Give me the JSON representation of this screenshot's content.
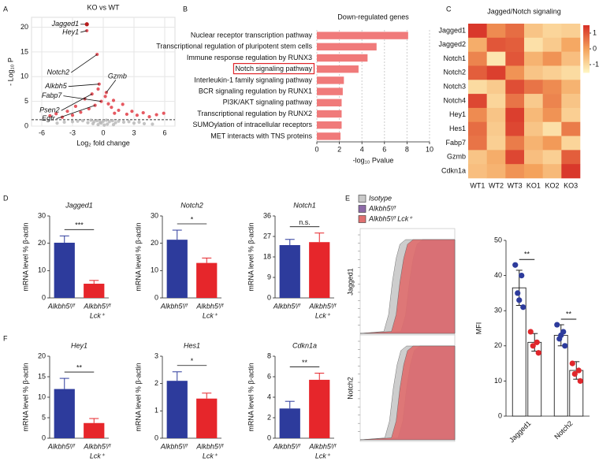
{
  "chart_data": [
    {
      "panel": "A",
      "type": "volcano",
      "title": "KO vs WT",
      "xlabel": "Log₂ fold change",
      "ylabel": "- Log₁₀ P",
      "xlim": [
        -7,
        7
      ],
      "xticks": [
        -6,
        -3,
        0,
        3,
        6
      ],
      "ylim": [
        0,
        22
      ],
      "yticks": [
        0,
        5,
        10,
        15,
        20
      ],
      "grid": true,
      "threshold": 1.3,
      "series": [
        {
          "color": "#b5b5b5",
          "x": [
            -4.5,
            -3.8,
            -3,
            -2.5,
            -2,
            -1.5,
            -1.2,
            -0.9,
            -0.6,
            -0.3,
            0,
            0.3,
            0.6,
            0.9,
            1.2,
            1.5,
            2,
            2.5,
            3,
            3.5,
            4,
            4.8,
            -0.5,
            0.4,
            -1,
            1,
            0.1,
            -0.2
          ],
          "values": [
            0.6,
            0.8,
            0.9,
            1.0,
            1.1,
            0.7,
            1.2,
            0.9,
            1.1,
            0.8,
            1.0,
            1.2,
            0.9,
            1.1,
            0.7,
            1.0,
            0.8,
            0.9,
            0.6,
            0.8,
            0.5,
            0.4,
            0.3,
            0.4,
            0.5,
            0.3,
            0.2,
            0.6
          ]
        },
        {
          "color": "#e0303a",
          "x": [
            -5.2,
            -4.6,
            -4,
            -3.5,
            -3,
            -2.7,
            -2.2,
            -1.8,
            -1.4,
            -1.1,
            -0.8,
            -0.5,
            -0.2,
            0.2,
            0.5,
            0.8,
            1.1,
            1.5,
            1.9,
            2.3,
            2.8,
            3.3,
            3.9,
            4.5,
            5.2,
            5.9,
            -0.4,
            0.3,
            1.0,
            -1.6,
            -1.6,
            -0.6
          ],
          "values": [
            2.1,
            2.5,
            1.8,
            3.0,
            2.2,
            4.0,
            2.8,
            5.5,
            3.5,
            6.5,
            4.2,
            7.5,
            5.0,
            6.0,
            4.5,
            3.8,
            2.6,
            3.2,
            4.4,
            2.4,
            3.0,
            2.2,
            2.7,
            1.9,
            2.3,
            2.6,
            8.5,
            6.8,
            5.2,
            20.6,
            19.3,
            14.5
          ]
        }
      ],
      "labels": [
        {
          "text": "Jagged1",
          "x": -1.6,
          "y": 20.6
        },
        {
          "text": "Hey1",
          "x": -1.6,
          "y": 19.3
        },
        {
          "text": "Notch2",
          "x": -0.6,
          "y": 14.5
        },
        {
          "text": "Alkbh5",
          "x": -0.4,
          "y": 8.5
        },
        {
          "text": "Fabp7",
          "x": -0.2,
          "y": 5.0
        },
        {
          "text": "Psen2",
          "x": -1.1,
          "y": 6.5
        },
        {
          "text": "Egfr",
          "x": -0.8,
          "y": 4.2
        },
        {
          "text": "Gzmb",
          "x": 0.3,
          "y": 6.8
        }
      ]
    },
    {
      "panel": "B",
      "type": "hbar",
      "title": "Down-regulated genes",
      "xlabel": "-log₁₀ Pvalue",
      "categories": [
        "Nuclear receptor transcription pathway",
        "Transcriptional regulation of pluripotent stem cells",
        "Immune response regulation by RUNX3",
        "Notch signaling pathway",
        "Interleukin-1 family signaling pathway",
        "BCR signaling regulation by RUNX1",
        "PI3K/AKT signaling pathway",
        "Transcriptional regulation by RUNX2",
        "SUMOylation of intracellular receptors",
        "MET interacts with TNS proteins"
      ],
      "values": [
        8.1,
        5.3,
        4.5,
        3.7,
        2.4,
        2.3,
        2.2,
        2.2,
        2.2,
        2.1
      ],
      "color": "#f07a7a",
      "highlight_index": 3,
      "xlim": [
        0,
        10
      ],
      "xticks": [
        0,
        2,
        4,
        6,
        8,
        10
      ],
      "grid": true
    },
    {
      "panel": "C",
      "type": "heatmap",
      "title": "Jagged/Notch signaling",
      "rows": [
        "Jagged1",
        "Jagged2",
        "Notch1",
        "Notch2",
        "Notch3",
        "Notch4",
        "Hey1",
        "Hes1",
        "Fabp7",
        "Gzmb",
        "Cdkn1a"
      ],
      "columns": [
        "WT1",
        "WT2",
        "WT3",
        "KO1",
        "KO2",
        "KO3"
      ],
      "highlight_rows": [
        0,
        3
      ],
      "highlight_color": "#e0303a",
      "values": [
        [
          1.4,
          0.3,
          0.7,
          -0.6,
          -0.9,
          -0.8
        ],
        [
          -0.2,
          1.0,
          0.9,
          -1.1,
          -0.7,
          -0.1
        ],
        [
          0.4,
          -1.2,
          1.0,
          -0.3,
          0.2,
          -0.5
        ],
        [
          0.9,
          1.3,
          0.2,
          -0.6,
          -0.8,
          -1.0
        ],
        [
          -1.0,
          -0.7,
          1.1,
          0.6,
          0.3,
          -0.3
        ],
        [
          1.2,
          -0.9,
          0.6,
          -0.7,
          0.4,
          -0.6
        ],
        [
          0.3,
          -0.6,
          1.3,
          -0.4,
          0.2,
          -0.8
        ],
        [
          0.7,
          -0.7,
          1.2,
          -0.6,
          -1.1,
          0.5
        ],
        [
          0.6,
          -0.8,
          0.5,
          -0.3,
          0.1,
          -0.9
        ],
        [
          -0.6,
          -0.2,
          1.2,
          -0.5,
          -0.8,
          0.9
        ],
        [
          -0.5,
          -0.3,
          0.2,
          0.0,
          -0.4,
          1.4
        ]
      ],
      "color_range": [
        -1.5,
        1.5
      ],
      "colors": [
        "#fff7c4",
        "#f4a25c",
        "#d73027"
      ],
      "colorbar_ticks": [
        1,
        0,
        -1
      ]
    },
    {
      "panel": "D",
      "type": "bar",
      "title": "Jagged1",
      "ylabel": "mRNA level % β-actin",
      "categories": [
        [
          "Alkbh5ᶠ/ᶠ"
        ],
        [
          "Alkbh5ᶠ/ᶠ",
          "Lck⁺"
        ]
      ],
      "values": [
        20.2,
        5.2
      ],
      "errors": [
        2.5,
        1.2
      ],
      "colors": [
        "#2d3b9c",
        "#e6262b"
      ],
      "ylim": [
        0,
        30
      ],
      "yticks": [
        0,
        10,
        20,
        30
      ],
      "significance": "***"
    },
    {
      "type": "bar",
      "title": "Notch2",
      "ylabel": "mRNA level % β-actin",
      "categories": [
        [
          "Alkbh5ᶠ/ᶠ"
        ],
        [
          "Alkbh5ᶠ/ᶠ",
          "Lck⁺"
        ]
      ],
      "values": [
        21.3,
        12.8
      ],
      "errors": [
        3.5,
        1.8
      ],
      "colors": [
        "#2d3b9c",
        "#e6262b"
      ],
      "ylim": [
        0,
        30
      ],
      "yticks": [
        0,
        10,
        20,
        30
      ],
      "significance": "*"
    },
    {
      "type": "bar",
      "title": "Notch1",
      "ylabel": "mRNA level % β-actin",
      "categories": [
        [
          "Alkbh5ᶠ/ᶠ"
        ],
        [
          "Alkbh5ᶠ/ᶠ",
          "Lck⁺"
        ]
      ],
      "values": [
        23.2,
        24.5
      ],
      "errors": [
        2.5,
        4.0
      ],
      "colors": [
        "#2d3b9c",
        "#e6262b"
      ],
      "ylim": [
        0,
        36
      ],
      "yticks": [
        0,
        9,
        18,
        27,
        36
      ],
      "significance": "n.s."
    },
    {
      "panel": "F",
      "type": "bar",
      "title": "Hey1",
      "ylabel": "mRNA level % β-actin",
      "categories": [
        [
          "Alkbh5ᶠ/ᶠ"
        ],
        [
          "Alkbh5ᶠ/ᶠ",
          "Lck⁺"
        ]
      ],
      "values": [
        12.0,
        3.7
      ],
      "errors": [
        2.6,
        1.1
      ],
      "colors": [
        "#2d3b9c",
        "#e6262b"
      ],
      "ylim": [
        0,
        20
      ],
      "yticks": [
        0,
        5,
        10,
        15,
        20
      ],
      "significance": "**"
    },
    {
      "type": "bar",
      "title": "Hes1",
      "ylabel": "mRNA level % β-actin",
      "categories": [
        [
          "Alkbh5ᶠ/ᶠ"
        ],
        [
          "Alkbh5ᶠ/ᶠ",
          "Lck⁺"
        ]
      ],
      "values": [
        2.1,
        1.45
      ],
      "errors": [
        0.33,
        0.2
      ],
      "colors": [
        "#2d3b9c",
        "#e6262b"
      ],
      "ylim": [
        0,
        3
      ],
      "yticks": [
        0,
        1,
        2,
        3
      ],
      "significance": "*"
    },
    {
      "type": "bar",
      "title": "Cdkn1a",
      "ylabel": "mRNA level % β-actin",
      "categories": [
        [
          "Alkbh5ᶠ/ᶠ"
        ],
        [
          "Alkbh5ᶠ/ᶠ",
          "Lck⁺"
        ]
      ],
      "values": [
        2.9,
        5.7
      ],
      "errors": [
        0.7,
        0.65
      ],
      "colors": [
        "#2d3b9c",
        "#e6262b"
      ],
      "ylim": [
        0,
        8
      ],
      "yticks": [
        0,
        2,
        4,
        6,
        8
      ],
      "significance": "**"
    },
    {
      "panel": "E",
      "type": "flow",
      "legend": [
        {
          "name": "Isotype",
          "color": "#c9c9c9",
          "text_color": "#9a9a9a"
        },
        {
          "name": "Alkbh5ᶠ/ᶠ",
          "color": "#8d6aa8",
          "text_color": "#2d3b9c"
        },
        {
          "name": "Alkbh5ᶠ/ᶠ Lck⁺",
          "color": "#e07070",
          "text_color": "#e0262b"
        }
      ],
      "xlim": [
        0,
        100
      ],
      "ylim": [
        0,
        100
      ],
      "panels": [
        {
          "label": "Jagged1",
          "curves": [
            {
              "x": [
                0,
                25,
                30,
                34,
                38,
                42,
                48,
                100
              ],
              "values": [
                0,
                2,
                20,
                55,
                80,
                95,
                100,
                100
              ]
            },
            {
              "x": [
                0,
                43,
                48,
                52,
                56,
                60,
                66,
                100
              ],
              "values": [
                0,
                2,
                20,
                55,
                80,
                95,
                100,
                100
              ]
            },
            {
              "x": [
                0,
                33,
                38,
                42,
                46,
                50,
                56,
                100
              ],
              "values": [
                0,
                2,
                20,
                55,
                80,
                95,
                100,
                100
              ]
            }
          ]
        },
        {
          "label": "Notch2",
          "curves": [
            {
              "x": [
                0,
                26,
                31,
                35,
                39,
                43,
                49,
                100
              ],
              "values": [
                0,
                2,
                20,
                55,
                80,
                95,
                100,
                100
              ]
            },
            {
              "x": [
                0,
                40,
                45,
                49,
                53,
                57,
                63,
                100
              ],
              "values": [
                0,
                2,
                20,
                55,
                80,
                95,
                100,
                100
              ]
            },
            {
              "x": [
                0,
                33,
                38,
                42,
                46,
                50,
                56,
                100
              ],
              "values": [
                0,
                2,
                20,
                55,
                80,
                95,
                100,
                100
              ]
            }
          ]
        }
      ]
    },
    {
      "type": "bar_dot",
      "ylabel": "MFI",
      "categories": [
        "Jagged1",
        "Notch2"
      ],
      "ylim": [
        0,
        50
      ],
      "yticks": [
        0,
        10,
        20,
        30,
        40,
        50
      ],
      "series": [
        {
          "color": "#2d3b9c",
          "values": [
            36.5,
            23.0
          ],
          "errors": [
            5.0,
            3.0
          ],
          "points": [
            [
              43,
              40,
              35,
              31,
              33
            ],
            [
              26,
              24,
              22,
              20,
              23
            ]
          ]
        },
        {
          "color": "#e0262b",
          "values": [
            21.0,
            13.0
          ],
          "errors": [
            2.5,
            2.5
          ],
          "points": [
            [
              24,
              21,
              20,
              18
            ],
            [
              15,
              13,
              12,
              10
            ]
          ]
        }
      ],
      "significance": [
        "**",
        "**"
      ]
    }
  ]
}
